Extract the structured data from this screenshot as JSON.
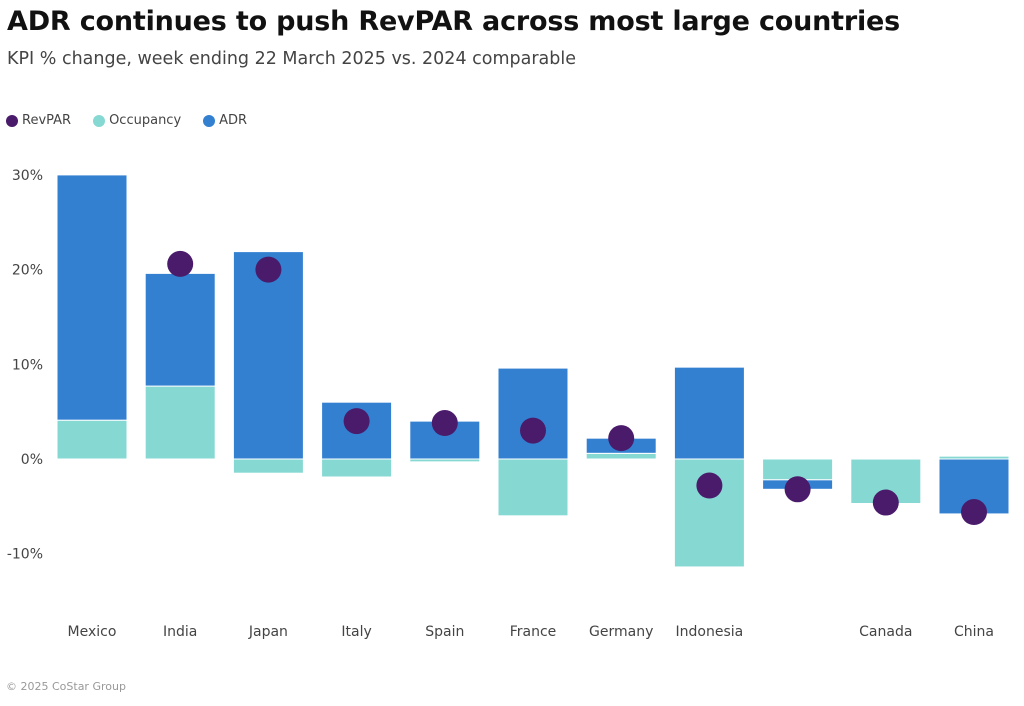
{
  "title": "ADR continues to push RevPAR across most large countries",
  "subtitle": "KPI % change, week ending 22 March 2025 vs. 2024 comparable",
  "footer": "© 2025 CoStar Group",
  "legend": [
    {
      "name": "RevPAR",
      "color": "#4a1b6b"
    },
    {
      "name": "Occupancy",
      "color": "#86d8d3"
    },
    {
      "name": "ADR",
      "color": "#3380d1"
    }
  ],
  "chart_data": {
    "type": "bar",
    "subtype": "stacked bar with dot overlay",
    "title": "ADR continues to push RevPAR across most large countries",
    "subtitle": "KPI % change, week ending 22 March 2025 vs. 2024 comparable",
    "xlabel": "",
    "ylabel": "",
    "ylim": [
      -15,
      30
    ],
    "yticks": [
      30,
      20,
      10,
      0,
      -10
    ],
    "ytick_labels": [
      "30%",
      "20%",
      "10%",
      "0%",
      "-10%"
    ],
    "grid": false,
    "legend_position": "top-left",
    "categories": [
      "Mexico",
      "India",
      "Japan",
      "Italy",
      "Spain",
      "France",
      "Germany",
      "Indonesia",
      "",
      "Canada",
      "China"
    ],
    "series": [
      {
        "name": "Occupancy",
        "kind": "bar",
        "color": "#86d8d3",
        "values": [
          4.1,
          7.7,
          -1.5,
          -1.9,
          -0.3,
          -6.0,
          0.6,
          -11.4,
          -2.2,
          -4.7,
          0.3
        ]
      },
      {
        "name": "ADR",
        "kind": "bar",
        "color": "#3380d1",
        "values": [
          25.9,
          11.9,
          21.9,
          6.0,
          4.0,
          9.6,
          1.6,
          9.7,
          -1.0,
          0.1,
          -5.8
        ]
      },
      {
        "name": "RevPAR",
        "kind": "dot",
        "color": "#4a1b6b",
        "values": [
          null,
          20.6,
          20.0,
          4.0,
          3.8,
          3.0,
          2.2,
          -2.8,
          -3.2,
          -4.6,
          -5.6
        ]
      }
    ]
  }
}
